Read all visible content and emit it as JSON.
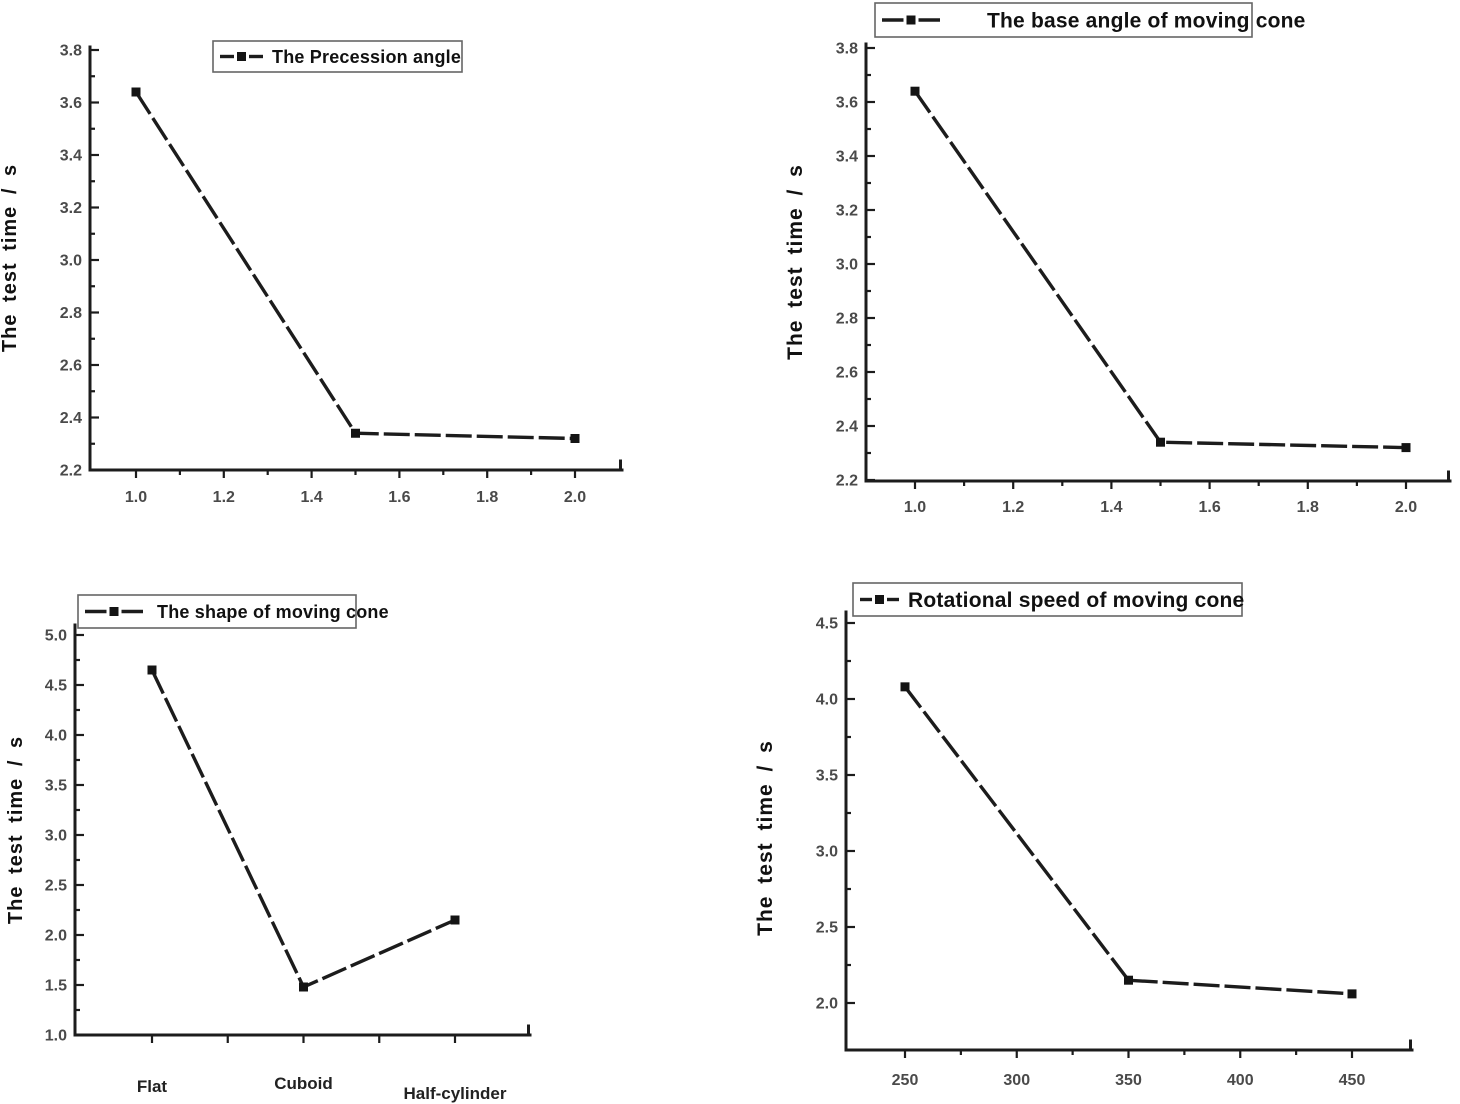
{
  "figure": {
    "background": "#ffffff",
    "line_color": "#1c1c1c",
    "marker_color": "#141414",
    "tick_label_color": "#4a4a4a",
    "text_color": "#111111",
    "legend_border_color": "#666666"
  },
  "chart_data": [
    {
      "id": "precession-angle",
      "type": "line",
      "legend": "The Precession angle",
      "ylabel": "The test time / s",
      "x": [
        1.0,
        1.5,
        2.0
      ],
      "y": [
        3.64,
        2.34,
        2.32
      ],
      "x_axis": {
        "min": 1.0,
        "max": 2.0,
        "major": 0.2,
        "minor": 0.1,
        "tick_labels": [
          "1.0",
          "1.2",
          "1.4",
          "1.6",
          "1.8",
          "2.0"
        ]
      },
      "y_axis": {
        "min": 2.2,
        "max": 3.8,
        "major": 0.2,
        "minor": 0.1,
        "tick_labels": [
          "2.2",
          "2.4",
          "2.6",
          "2.8",
          "3.0",
          "3.2",
          "3.4",
          "3.6",
          "3.8"
        ]
      },
      "legend_position": "inside-top-center",
      "grid": false
    },
    {
      "id": "base-angle",
      "type": "line",
      "legend": "The base angle of moving cone",
      "ylabel": "The test time / s",
      "x": [
        1.0,
        1.5,
        2.0
      ],
      "y": [
        3.64,
        2.34,
        2.32
      ],
      "x_axis": {
        "min": 1.0,
        "max": 2.0,
        "major": 0.2,
        "minor": 0.1,
        "tick_labels": [
          "1.0",
          "1.2",
          "1.4",
          "1.6",
          "1.8",
          "2.0"
        ]
      },
      "y_axis": {
        "min": 2.2,
        "max": 3.8,
        "major": 0.2,
        "minor": 0.1,
        "tick_labels": [
          "2.2",
          "2.4",
          "2.6",
          "2.8",
          "3.0",
          "3.2",
          "3.4",
          "3.6",
          "3.8"
        ]
      },
      "legend_position": "top-above-axis",
      "grid": false
    },
    {
      "id": "shape-of-moving-cone",
      "type": "line",
      "legend": "The shape of moving cone",
      "ylabel": "The test time / s",
      "categories": [
        "Flat",
        "Cuboid",
        "Half-cylinder"
      ],
      "y": [
        4.65,
        1.48,
        2.15
      ],
      "x_axis": {
        "type": "category",
        "num_ticks": 5,
        "category_tick_indices": [
          0,
          2,
          4
        ]
      },
      "y_axis": {
        "min": 1.0,
        "max": 5.0,
        "major": 0.5,
        "minor": 0.25,
        "tick_labels": [
          "1.0",
          "1.5",
          "2.0",
          "2.5",
          "3.0",
          "3.5",
          "4.0",
          "4.5",
          "5.0"
        ]
      },
      "legend_position": "inside-top-left",
      "grid": false
    },
    {
      "id": "rotational-speed",
      "type": "line",
      "legend": "Rotational speed of moving cone",
      "ylabel": "The test time / s",
      "x": [
        250,
        350,
        450
      ],
      "y": [
        4.08,
        2.15,
        2.06
      ],
      "x_axis": {
        "min": 250,
        "max": 450,
        "major": 50,
        "minor": 25,
        "tick_labels": [
          "250",
          "300",
          "350",
          "400",
          "450"
        ]
      },
      "y_axis": {
        "min": 2.0,
        "max": 4.5,
        "major": 0.5,
        "minor": 0.25,
        "tick_labels": [
          "2.0",
          "2.5",
          "3.0",
          "3.5",
          "4.0",
          "4.5"
        ]
      },
      "legend_position": "inside-top-left",
      "grid": false
    }
  ]
}
